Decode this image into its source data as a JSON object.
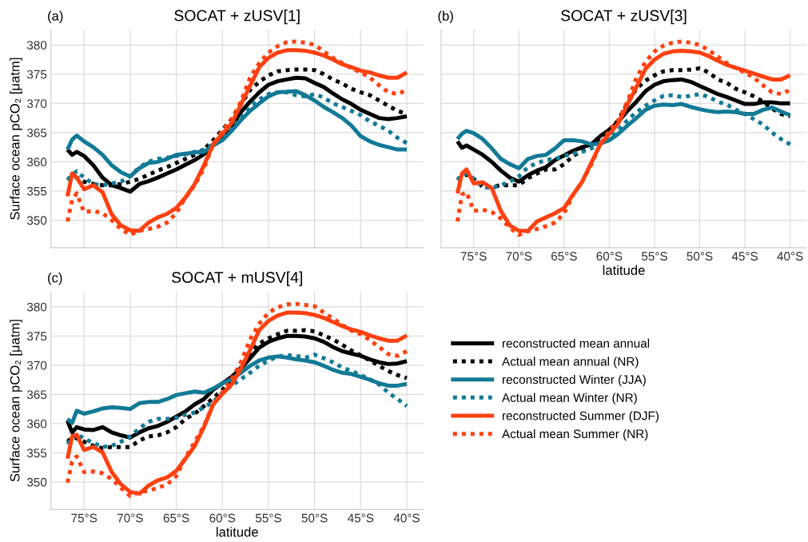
{
  "chart_data": [
    {
      "type": "line",
      "title": "SOCAT + zUSV[1]",
      "ylabel": "Surface ocean pCO₂ [μatm]",
      "annotations": [
        "(a)"
      ],
      "grid": true,
      "tick_labels": "y",
      "xlim": [
        -78.6,
        -38.2
      ],
      "ylim": [
        345.3,
        382.6
      ],
      "xticks": [
        {
          "value": -75,
          "label": null
        },
        {
          "value": -70,
          "label": null
        },
        {
          "value": -65,
          "label": null
        },
        {
          "value": -60,
          "label": null
        },
        {
          "value": -55,
          "label": null
        },
        {
          "value": -50,
          "label": null
        },
        {
          "value": -45,
          "label": null
        },
        {
          "value": -40,
          "label": null
        }
      ],
      "yticks": [
        350,
        355,
        360,
        365,
        370,
        375,
        380
      ],
      "x": [
        -76.8,
        -76.3,
        -75.8,
        -75,
        -74,
        -73,
        -72,
        -71,
        -70,
        -69,
        -68,
        -67,
        -66,
        -65,
        -64,
        -63,
        -62,
        -61,
        -60,
        -59,
        -58,
        -57,
        -56,
        -55,
        -54,
        -53,
        -52,
        -51,
        -50,
        -49,
        -48,
        -47,
        -46,
        -45,
        -44,
        -43,
        -42,
        -41,
        -40
      ],
      "series": [
        {
          "color": "#000000",
          "line_style": "solid",
          "values": [
            362.1,
            361.2,
            361.7,
            361.0,
            359.4,
            357.3,
            356.0,
            355.5,
            354.9,
            356.2,
            356.7,
            357.3,
            358.0,
            358.7,
            359.5,
            360.3,
            361.3,
            362.8,
            364.4,
            366.0,
            368.5,
            370.3,
            371.9,
            373.2,
            373.8,
            374.1,
            374.4,
            374.3,
            373.5,
            372.8,
            371.7,
            370.7,
            369.9,
            368.9,
            368.2,
            367.5,
            367.3,
            367.5,
            367.8
          ]
        },
        {
          "color": "#000000",
          "line_style": "dotted",
          "values": [
            356.9,
            357.5,
            357.3,
            356.6,
            356.2,
            356.0,
            356.0,
            356.2,
            356.6,
            357.1,
            357.8,
            358.5,
            359.1,
            359.8,
            360.5,
            361.2,
            362.1,
            363.7,
            365.5,
            367.3,
            369.8,
            372.3,
            373.7,
            374.8,
            375.5,
            375.7,
            375.8,
            375.8,
            375.7,
            375.0,
            374.1,
            373.4,
            372.5,
            371.9,
            371.4,
            370.5,
            369.6,
            368.7,
            368.2
          ]
        },
        {
          "color": "#127a96",
          "line_style": "solid",
          "values": [
            362.1,
            363.8,
            364.5,
            363.5,
            362.5,
            361.2,
            359.4,
            358.2,
            357.5,
            358.9,
            359.8,
            360.0,
            360.5,
            361.2,
            361.4,
            361.6,
            361.7,
            362.8,
            363.7,
            365.3,
            367.1,
            368.7,
            370.0,
            371.2,
            371.9,
            372.0,
            372.1,
            371.4,
            370.5,
            369.4,
            368.5,
            367.5,
            366.2,
            364.4,
            363.5,
            362.9,
            362.5,
            362.1,
            362.1
          ]
        },
        {
          "color": "#127a96",
          "line_style": "dotted",
          "values": [
            356.9,
            357.8,
            358.4,
            357.3,
            356.2,
            356.0,
            356.3,
            356.6,
            357.5,
            359.1,
            360.0,
            360.5,
            360.7,
            361.0,
            361.3,
            361.7,
            362.1,
            363.0,
            364.1,
            365.7,
            367.5,
            369.4,
            370.7,
            371.6,
            371.9,
            371.9,
            371.4,
            371.2,
            371.6,
            371.0,
            370.0,
            369.4,
            368.7,
            368.0,
            366.9,
            366.2,
            365.3,
            364.1,
            363.2
          ]
        },
        {
          "color": "#ff4010",
          "line_style": "solid",
          "values": [
            354.1,
            358.0,
            357.3,
            355.3,
            356.0,
            354.8,
            351.0,
            349.1,
            348.3,
            348.2,
            349.6,
            350.5,
            351.1,
            352.1,
            353.9,
            356.2,
            359.4,
            363.0,
            364.8,
            366.6,
            369.8,
            373.0,
            376.2,
            377.8,
            378.7,
            379.1,
            379.1,
            379.0,
            378.7,
            378.2,
            377.5,
            376.7,
            376.2,
            375.6,
            375.3,
            374.8,
            374.4,
            374.4,
            375.3
          ]
        },
        {
          "color": "#ff4010",
          "line_style": "dotted",
          "values": [
            349.8,
            353.5,
            354.6,
            351.4,
            351.6,
            351.2,
            350.0,
            348.5,
            347.5,
            348.2,
            348.5,
            348.9,
            349.6,
            351.2,
            353.9,
            356.0,
            358.9,
            363.0,
            365.3,
            367.3,
            370.3,
            374.4,
            376.9,
            378.7,
            379.8,
            380.5,
            380.6,
            380.4,
            380.0,
            378.9,
            377.8,
            376.9,
            376.0,
            375.3,
            374.4,
            373.1,
            371.9,
            371.6,
            372.3
          ]
        }
      ]
    },
    {
      "type": "line",
      "title": "SOCAT + zUSV[3]",
      "xlabel": "latitude",
      "annotations": [
        "(b)"
      ],
      "grid": true,
      "tick_labels": "x",
      "xlim": [
        -78.6,
        -38.2
      ],
      "ylim": [
        345.3,
        382.6
      ],
      "xticks": [
        {
          "value": -75,
          "label": "75°S"
        },
        {
          "value": -70,
          "label": "70°S"
        },
        {
          "value": -65,
          "label": "65°S"
        },
        {
          "value": -60,
          "label": "60°S"
        },
        {
          "value": -55,
          "label": "55°S"
        },
        {
          "value": -50,
          "label": "50°S"
        },
        {
          "value": -45,
          "label": "45°S"
        },
        {
          "value": -40,
          "label": "40°S"
        }
      ],
      "yticks": [
        {
          "value": 350,
          "label": null
        },
        {
          "value": 355,
          "label": null
        },
        {
          "value": 360,
          "label": null
        },
        {
          "value": 365,
          "label": null
        },
        {
          "value": 370,
          "label": null
        },
        {
          "value": 375,
          "label": null
        },
        {
          "value": 380,
          "label": null
        }
      ],
      "x": [
        -76.8,
        -76.3,
        -75.8,
        -75,
        -74,
        -73,
        -72,
        -71,
        -70,
        -69,
        -68,
        -67,
        -66,
        -65,
        -64,
        -63,
        -62,
        -61,
        -60,
        -59,
        -58,
        -57,
        -56,
        -55,
        -54,
        -53,
        -52,
        -51,
        -50,
        -49,
        -48,
        -47,
        -46,
        -45,
        -44,
        -43,
        -42,
        -41,
        -40
      ],
      "series": [
        {
          "color": "#000000",
          "line_style": "solid",
          "values": [
            363.5,
            362.4,
            362.8,
            362.1,
            361.2,
            360.0,
            358.5,
            357.3,
            356.6,
            357.7,
            358.5,
            359.1,
            360.3,
            361.1,
            361.9,
            362.5,
            363.0,
            364.4,
            365.5,
            366.9,
            368.7,
            370.3,
            372.1,
            373.2,
            373.8,
            374.0,
            374.1,
            373.7,
            373.0,
            372.3,
            371.6,
            371.1,
            370.5,
            369.9,
            369.9,
            370.2,
            370.2,
            370.0,
            370.0
          ]
        },
        {
          "color": "#000000",
          "line_style": "dotted",
          "values": [
            356.9,
            357.6,
            357.8,
            357.1,
            355.7,
            355.7,
            356.0,
            356.0,
            356.0,
            357.2,
            358.0,
            358.7,
            358.7,
            359.6,
            361.0,
            361.9,
            362.8,
            364.1,
            365.5,
            367.1,
            370.0,
            372.5,
            373.9,
            374.8,
            375.5,
            375.7,
            375.7,
            375.8,
            376.0,
            375.3,
            374.1,
            373.5,
            372.5,
            371.9,
            371.2,
            370.3,
            369.1,
            368.2,
            367.8
          ]
        },
        {
          "color": "#127a96",
          "line_style": "solid",
          "values": [
            363.9,
            364.8,
            365.3,
            364.9,
            363.9,
            362.3,
            360.5,
            359.6,
            358.9,
            360.5,
            361.0,
            361.2,
            362.3,
            363.7,
            363.7,
            363.5,
            363.0,
            363.1,
            363.7,
            364.8,
            366.2,
            367.5,
            368.9,
            369.6,
            369.8,
            369.7,
            369.9,
            369.4,
            369.0,
            368.7,
            368.5,
            368.6,
            368.5,
            368.2,
            368.2,
            368.9,
            369.3,
            368.6,
            368.0
          ]
        },
        {
          "color": "#127a96",
          "line_style": "dotted",
          "values": [
            356.9,
            357.8,
            358.0,
            357.1,
            355.7,
            355.5,
            356.0,
            356.6,
            357.5,
            359.1,
            359.8,
            360.3,
            360.5,
            361.0,
            361.4,
            361.7,
            362.3,
            363.0,
            363.9,
            365.5,
            367.1,
            368.5,
            369.6,
            370.5,
            371.3,
            371.4,
            371.1,
            371.3,
            371.6,
            371.1,
            370.3,
            369.8,
            368.9,
            368.2,
            367.3,
            366.4,
            365.0,
            363.9,
            363.0
          ]
        },
        {
          "color": "#ff4010",
          "line_style": "solid",
          "values": [
            354.6,
            358.0,
            358.7,
            356.3,
            356.5,
            355.5,
            351.6,
            349.1,
            348.2,
            348.2,
            349.8,
            350.5,
            351.2,
            352.1,
            354.4,
            356.6,
            359.8,
            363.0,
            364.8,
            366.6,
            369.8,
            372.8,
            375.9,
            377.5,
            378.5,
            378.9,
            379.0,
            378.9,
            378.7,
            378.1,
            377.3,
            376.6,
            376.1,
            375.6,
            375.1,
            374.6,
            374.1,
            374.1,
            374.8
          ]
        },
        {
          "color": "#ff4010",
          "line_style": "dotted",
          "values": [
            349.8,
            354.4,
            354.8,
            351.6,
            351.8,
            351.4,
            350.3,
            348.7,
            347.5,
            348.1,
            348.5,
            349.0,
            349.6,
            351.2,
            354.4,
            356.6,
            359.5,
            363.0,
            365.3,
            367.1,
            370.3,
            374.4,
            377.1,
            378.9,
            379.9,
            380.4,
            380.6,
            380.4,
            380.0,
            379.1,
            378.0,
            376.9,
            376.0,
            375.3,
            374.4,
            373.1,
            371.9,
            371.6,
            372.3
          ]
        }
      ]
    },
    {
      "type": "line",
      "title": "SOCAT + mUSV[4]",
      "xlabel": "latitude",
      "ylabel": "Surface ocean pCO₂ [μatm]",
      "annotations": [
        "(c)"
      ],
      "grid": true,
      "legend": "right",
      "xlim": [
        -78.6,
        -38.2
      ],
      "ylim": [
        345.3,
        382.6
      ],
      "xticks": [
        {
          "value": -75,
          "label": "75°S"
        },
        {
          "value": -70,
          "label": "70°S"
        },
        {
          "value": -65,
          "label": "65°S"
        },
        {
          "value": -60,
          "label": "60°S"
        },
        {
          "value": -55,
          "label": "55°S"
        },
        {
          "value": -50,
          "label": "50°S"
        },
        {
          "value": -45,
          "label": "45°S"
        },
        {
          "value": -40,
          "label": "40°S"
        }
      ],
      "yticks": [
        350,
        355,
        360,
        365,
        370,
        375,
        380
      ],
      "x": [
        -76.8,
        -76.3,
        -75.8,
        -75,
        -74,
        -73,
        -72,
        -71,
        -70,
        -69,
        -68,
        -67,
        -66,
        -65,
        -64,
        -63,
        -62,
        -61,
        -60,
        -59,
        -58,
        -57,
        -56,
        -55,
        -54,
        -53,
        -52,
        -51,
        -50,
        -49,
        -48,
        -47,
        -46,
        -45,
        -44,
        -43,
        -42,
        -41,
        -40
      ],
      "series": [
        {
          "name": "reconstructed mean annual",
          "color": "#000000",
          "line_style": "solid",
          "values": [
            360.5,
            358.5,
            359.4,
            359.0,
            358.9,
            359.4,
            358.5,
            358.0,
            357.6,
            358.5,
            359.2,
            359.6,
            360.3,
            361.2,
            362.1,
            363.3,
            364.2,
            365.8,
            366.9,
            368.0,
            369.4,
            371.2,
            373.0,
            374.0,
            374.6,
            375.0,
            375.0,
            374.9,
            374.6,
            374.0,
            373.1,
            372.4,
            372.0,
            371.6,
            371.0,
            370.5,
            370.2,
            370.3,
            370.7
          ]
        },
        {
          "name": "Actual mean annual (NR)",
          "color": "#000000",
          "line_style": "dotted",
          "values": [
            356.9,
            357.6,
            357.5,
            356.9,
            356.2,
            355.8,
            356.0,
            356.0,
            356.0,
            357.1,
            357.8,
            358.0,
            358.5,
            359.4,
            360.8,
            361.7,
            363.0,
            364.4,
            365.8,
            367.6,
            369.6,
            372.1,
            373.7,
            374.6,
            375.3,
            375.9,
            375.9,
            376.0,
            375.8,
            375.1,
            374.4,
            373.5,
            372.5,
            371.7,
            370.8,
            369.9,
            369.0,
            368.3,
            367.8
          ]
        },
        {
          "name": "reconstructed Winter (JJA)",
          "color": "#127a96",
          "line_style": "solid",
          "values": [
            360.8,
            360.1,
            362.2,
            361.7,
            362.1,
            362.6,
            362.8,
            362.7,
            362.5,
            363.5,
            363.7,
            363.7,
            364.2,
            364.9,
            365.2,
            365.5,
            365.3,
            366.0,
            366.9,
            367.6,
            368.7,
            369.9,
            370.8,
            371.3,
            371.5,
            371.3,
            371.0,
            370.8,
            370.5,
            369.9,
            369.2,
            368.7,
            368.5,
            368.0,
            367.5,
            366.9,
            366.5,
            366.5,
            366.8
          ]
        },
        {
          "name": "Actual mean Winter (NR)",
          "color": "#127a96",
          "line_style": "dotted",
          "values": [
            356.5,
            357.5,
            358.3,
            357.4,
            356.7,
            356.0,
            356.2,
            356.9,
            357.8,
            359.2,
            360.3,
            360.8,
            360.8,
            361.0,
            361.5,
            361.9,
            362.8,
            363.7,
            365.3,
            366.5,
            367.6,
            368.7,
            369.9,
            370.8,
            371.5,
            371.7,
            371.6,
            371.3,
            371.8,
            371.2,
            370.5,
            369.6,
            369.0,
            368.3,
            367.6,
            366.7,
            365.3,
            364.2,
            363.0
          ]
        },
        {
          "name": "reconstructed Summer (DJF)",
          "color": "#ff4010",
          "line_style": "solid",
          "values": [
            354.0,
            357.8,
            358.1,
            355.5,
            356.0,
            355.1,
            351.7,
            349.6,
            348.3,
            348.0,
            349.4,
            350.3,
            350.8,
            351.9,
            354.0,
            356.2,
            359.4,
            363.3,
            365.1,
            366.7,
            369.4,
            372.6,
            376.0,
            377.6,
            378.5,
            379.0,
            379.0,
            378.9,
            378.6,
            378.1,
            377.4,
            376.7,
            376.1,
            375.7,
            375.1,
            374.6,
            374.2,
            374.2,
            375.1
          ]
        },
        {
          "name": "Actual mean Summer (NR)",
          "color": "#ff4010",
          "line_style": "dotted",
          "values": [
            349.9,
            353.5,
            354.4,
            351.7,
            351.8,
            351.5,
            350.5,
            349.0,
            347.6,
            348.3,
            348.5,
            349.0,
            349.6,
            351.0,
            354.2,
            356.9,
            359.6,
            363.3,
            365.3,
            367.6,
            370.5,
            374.4,
            377.1,
            379.0,
            379.9,
            380.4,
            380.5,
            380.3,
            380.1,
            379.0,
            378.0,
            376.9,
            375.9,
            375.3,
            374.3,
            373.1,
            371.9,
            371.6,
            372.4
          ]
        }
      ]
    }
  ]
}
